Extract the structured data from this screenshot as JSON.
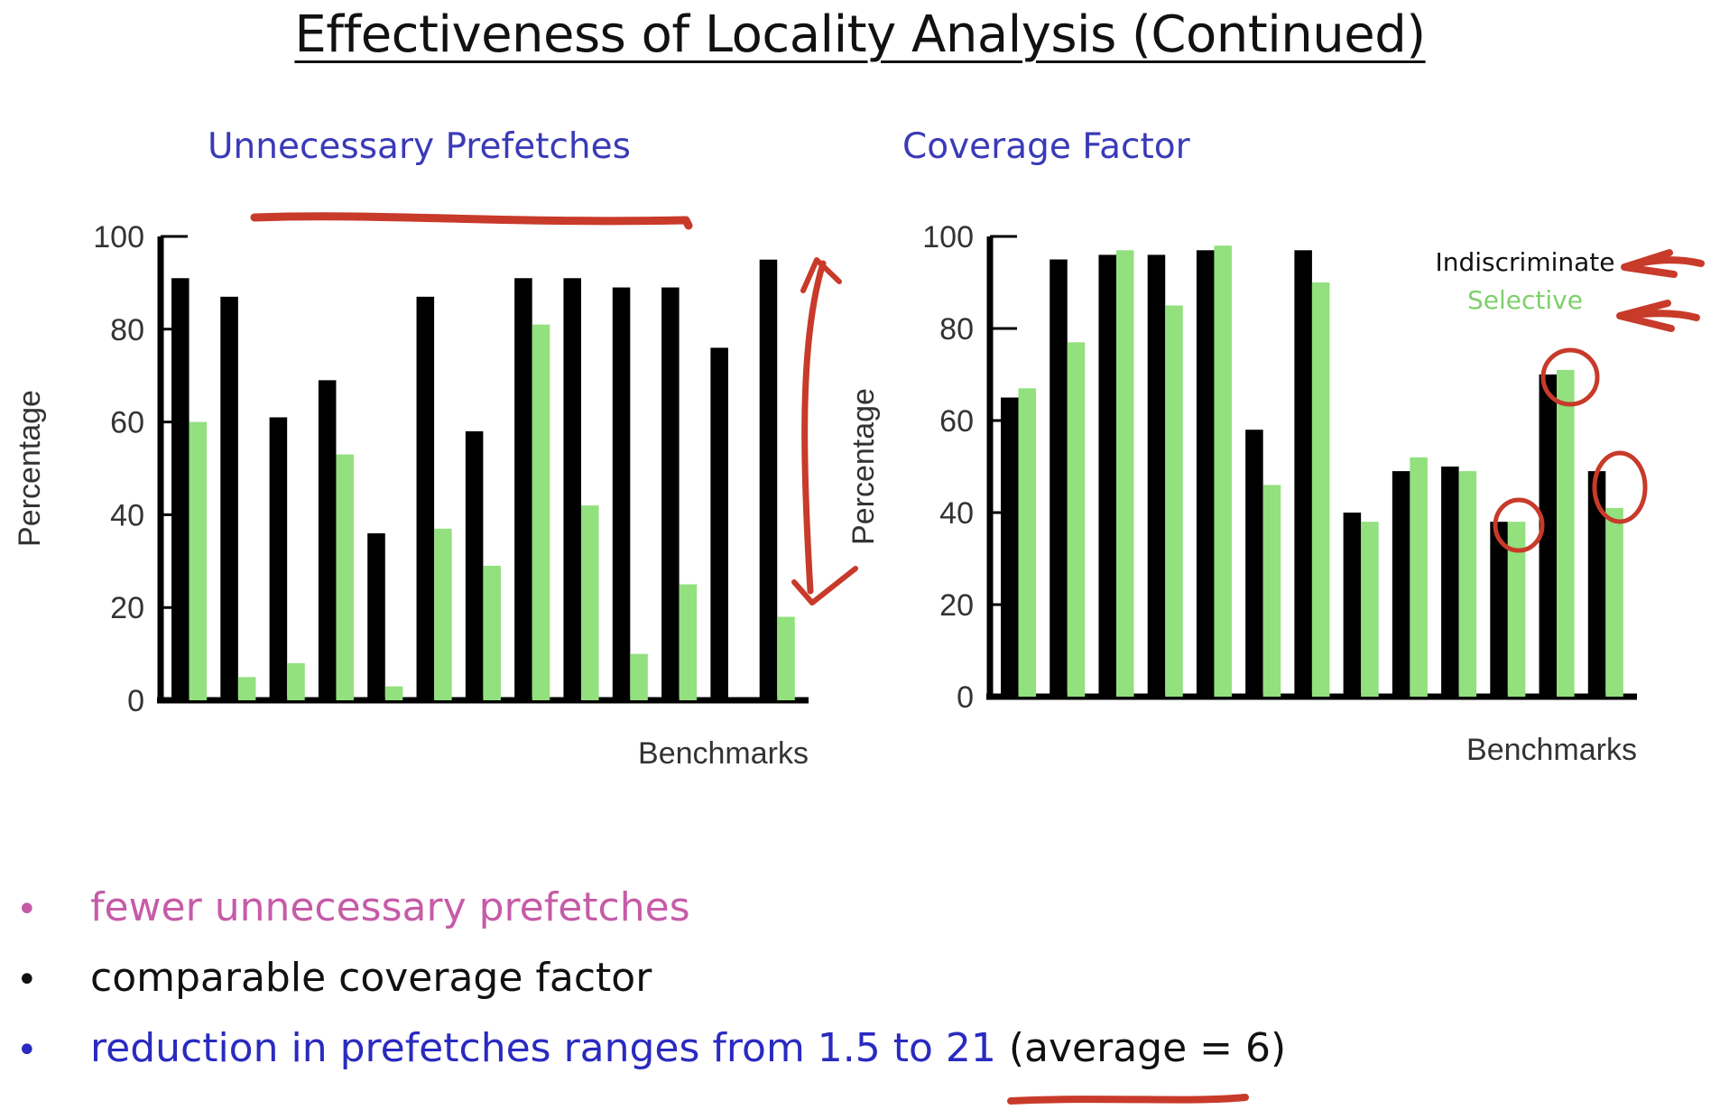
{
  "page": {
    "title": "Effectiveness of Locality Analysis (Continued)"
  },
  "legend": {
    "indiscriminate": "Indiscriminate",
    "selective": "Selective"
  },
  "colors": {
    "indiscriminate": "#000000",
    "selective": "#92e07e",
    "chart_title": "#3a3ab8",
    "annotation": "#c83a2a",
    "bullet_pink": "#c65ba8",
    "bullet_black": "#111111",
    "bullet_blue": "#2a2ac0"
  },
  "chart_data": [
    {
      "type": "bar",
      "title": "Unnecessary Prefetches",
      "xlabel": "Benchmarks",
      "ylabel": "Percentage",
      "ylim": [
        0,
        100
      ],
      "yticks": [
        "0",
        "20",
        "40",
        "60",
        "80",
        "100"
      ],
      "series": [
        {
          "name": "Indiscriminate",
          "values": [
            91,
            87,
            61,
            69,
            36,
            87,
            58,
            91,
            91,
            89,
            89,
            76,
            95
          ]
        },
        {
          "name": "Selective",
          "values": [
            60,
            5,
            8,
            53,
            3,
            37,
            29,
            81,
            42,
            10,
            25,
            0,
            18
          ]
        }
      ],
      "grid": false,
      "legend": "none"
    },
    {
      "type": "bar",
      "title": "Coverage Factor",
      "xlabel": "Benchmarks",
      "ylabel": "Percentage",
      "ylim": [
        0,
        100
      ],
      "yticks": [
        "0",
        "20",
        "40",
        "60",
        "80",
        "100"
      ],
      "series": [
        {
          "name": "Indiscriminate",
          "values": [
            65,
            95,
            96,
            96,
            97,
            58,
            97,
            40,
            49,
            50,
            38,
            70,
            49
          ]
        },
        {
          "name": "Selective",
          "values": [
            67,
            77,
            97,
            85,
            98,
            46,
            90,
            38,
            52,
            49,
            38,
            71,
            41
          ]
        }
      ],
      "grid": false,
      "legend": "top-right"
    }
  ],
  "bullets": [
    {
      "text": "fewer unnecessary prefetches",
      "color": "#c65ba8"
    },
    {
      "text": "comparable coverage factor",
      "color": "#111111"
    },
    {
      "text": "reduction in prefetches ranges from 1.5 to 21",
      "suffix": " (average = 6)",
      "color": "#2a2ac0"
    }
  ],
  "bullet_symbol": "•"
}
